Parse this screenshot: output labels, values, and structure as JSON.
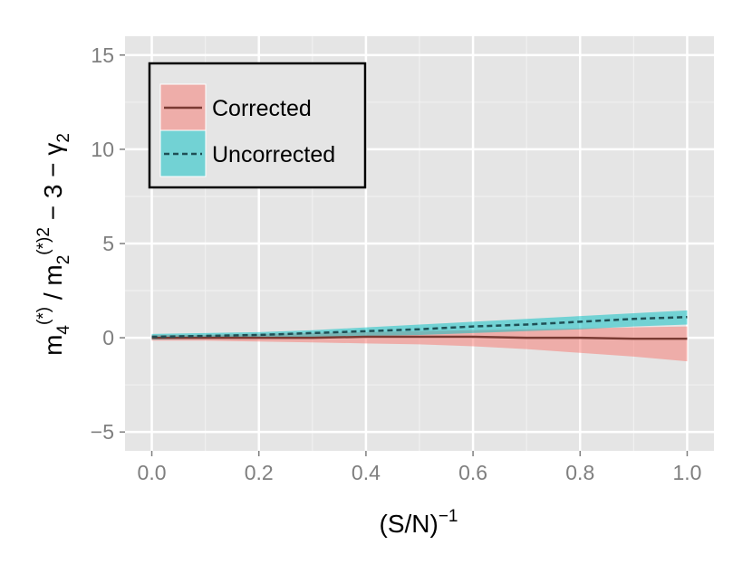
{
  "chart_data": {
    "type": "line",
    "title": "",
    "xlabel": "(S/N)",
    "xlabel_superscript": "−1",
    "ylabel": {
      "m": "m",
      "sub4": "4",
      "sub2": "2",
      "sup_star": "(*)",
      "sup_star_sq": "(*)2",
      "slash": " / ",
      "minus_three": " − 3 − ",
      "gamma": "γ",
      "gamma_sub": "2"
    },
    "xlim": [
      -0.05,
      1.05
    ],
    "ylim": [
      -6,
      16
    ],
    "x_ticks": [
      0.0,
      0.2,
      0.4,
      0.6,
      0.8,
      1.0
    ],
    "x_tick_labels": [
      "0.0",
      "0.2",
      "0.4",
      "0.6",
      "0.8",
      "1.0"
    ],
    "y_ticks": [
      -5,
      0,
      5,
      10,
      15
    ],
    "y_tick_labels": [
      "−5",
      "0",
      "5",
      "10",
      "15"
    ],
    "grid": true,
    "legend_position": "top-left",
    "series": [
      {
        "name": "Corrected",
        "line_style": "solid",
        "line_color": "#7a3a33",
        "band_color": "#f8766d",
        "x": [
          0.0,
          0.1,
          0.2,
          0.3,
          0.4,
          0.5,
          0.6,
          0.7,
          0.8,
          0.9,
          1.0
        ],
        "y": [
          0.0,
          0.0,
          0.0,
          0.0,
          0.05,
          0.05,
          0.05,
          0.0,
          0.0,
          -0.05,
          -0.05
        ],
        "lower": [
          -0.15,
          -0.15,
          -0.2,
          -0.25,
          -0.3,
          -0.35,
          -0.45,
          -0.6,
          -0.8,
          -1.0,
          -1.25
        ],
        "upper": [
          0.15,
          0.15,
          0.2,
          0.25,
          0.3,
          0.35,
          0.4,
          0.45,
          0.5,
          0.55,
          0.6
        ]
      },
      {
        "name": "Uncorrected",
        "line_style": "dashed",
        "line_color": "#1f4f55",
        "band_color": "#00bfc4",
        "x": [
          0.0,
          0.1,
          0.2,
          0.3,
          0.4,
          0.5,
          0.6,
          0.7,
          0.8,
          0.9,
          1.0
        ],
        "y": [
          0.05,
          0.1,
          0.15,
          0.25,
          0.35,
          0.45,
          0.6,
          0.7,
          0.85,
          1.0,
          1.1
        ],
        "lower": [
          -0.1,
          -0.05,
          0.0,
          0.05,
          0.1,
          0.15,
          0.25,
          0.35,
          0.45,
          0.6,
          0.7
        ],
        "upper": [
          0.2,
          0.25,
          0.3,
          0.4,
          0.55,
          0.7,
          0.85,
          1.0,
          1.15,
          1.3,
          1.45
        ]
      }
    ]
  }
}
